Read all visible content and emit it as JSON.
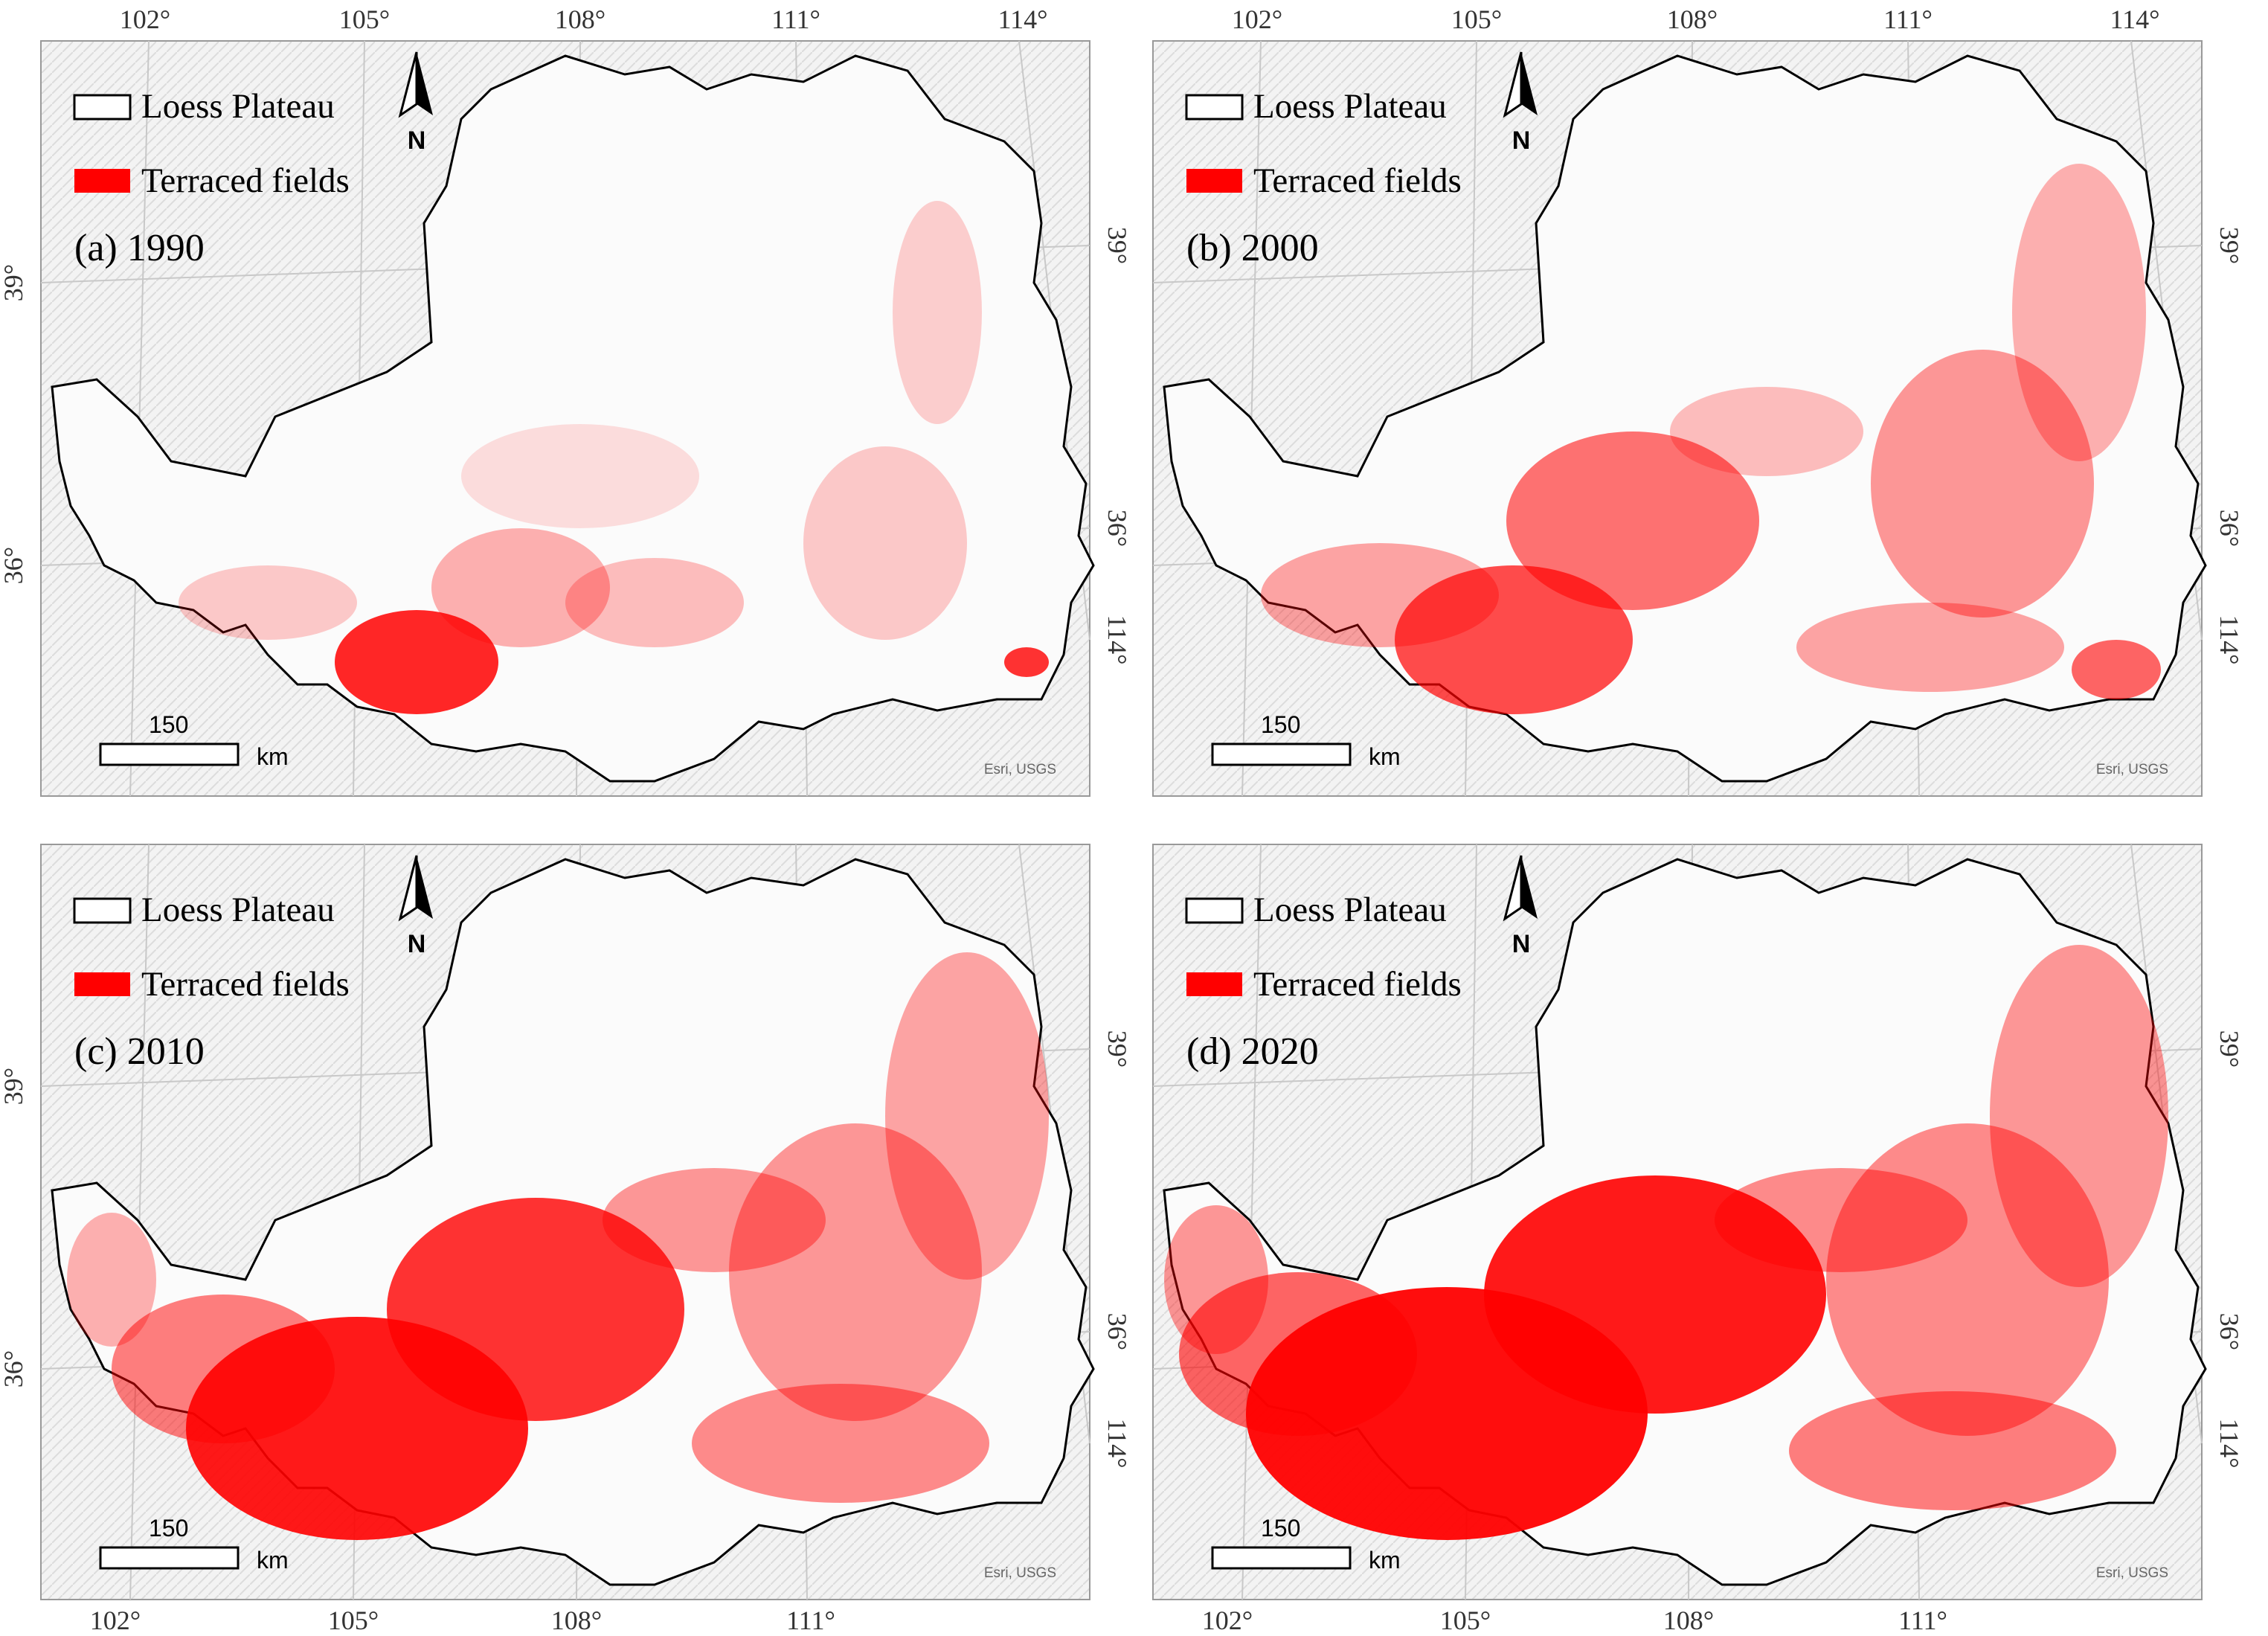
{
  "legend": {
    "boundary_label": "Loess Plateau",
    "terrace_label": "Terraced fields",
    "boundary_swatch_color": "#ffffff",
    "terrace_color": "#ff0000"
  },
  "north_arrow": {
    "label": "N"
  },
  "scale_bar": {
    "value": "150",
    "unit": "km"
  },
  "credit": "Esri, USGS",
  "graticule": {
    "longitudes": [
      "102°",
      "105°",
      "108°",
      "111°",
      "114°"
    ],
    "latitudes": [
      "39°",
      "36°"
    ]
  },
  "colors": {
    "boundary": "#000000",
    "terrace": "#ff0000",
    "hillshade": "#e6e6e6",
    "graticule": "#c8c8c8"
  },
  "panels": [
    {
      "id": "a",
      "label": "(a) 1990",
      "year": 1990,
      "relative_terrace_extent": 0.25
    },
    {
      "id": "b",
      "label": "(b) 2000",
      "year": 2000,
      "relative_terrace_extent": 0.45
    },
    {
      "id": "c",
      "label": "(c) 2010",
      "year": 2010,
      "relative_terrace_extent": 0.7
    },
    {
      "id": "d",
      "label": "(d) 2020",
      "year": 2020,
      "relative_terrace_extent": 0.9
    }
  ]
}
